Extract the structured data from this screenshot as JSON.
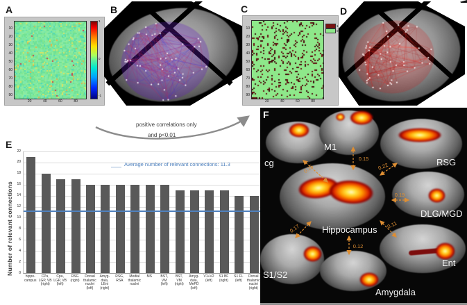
{
  "figure": {
    "panel_a": {
      "label": "A",
      "type": "correlation-matrix-heatmap",
      "y_ticks": [
        "10",
        "20",
        "30",
        "40",
        "50",
        "60",
        "70",
        "80",
        "90"
      ],
      "x_ticks": [
        "20",
        "40",
        "60",
        "80"
      ],
      "colorbar_ticks": [
        "1",
        "0",
        "-1"
      ],
      "colors": {
        "frame_bg": "#c7c7c7",
        "matrix_base": "#7ee49a"
      }
    },
    "panel_b": {
      "label": "B",
      "type": "brain-network-overlay",
      "network_colors": [
        "#5a1fd0",
        "#c01868",
        "#3030d8",
        "#cc2840"
      ],
      "haze": "rgba(100,30,190,0.30)",
      "node_color": "#ffffff"
    },
    "panel_c": {
      "label": "C",
      "type": "thresholded-matrix",
      "y_ticks": [
        "10",
        "20",
        "30",
        "40",
        "50",
        "60",
        "70",
        "80",
        "90"
      ],
      "x_ticks": [
        "20",
        "40",
        "60",
        "80"
      ],
      "legend": [
        {
          "label": "1",
          "color": "#7a1212"
        },
        {
          "label": "0",
          "color": "#8ee88a"
        }
      ],
      "colors": {
        "frame_bg": "#c7c7c7",
        "matrix_base": "#8ee88a",
        "dot": "#5c1010"
      }
    },
    "panel_d": {
      "label": "D",
      "type": "brain-network-overlay",
      "network_colors": [
        "#e41f1f",
        "#b31111",
        "#ff4433",
        "#8f0a0a"
      ],
      "haze": "rgba(215,25,25,0.22)",
      "node_color": "#ffffff"
    },
    "transition": {
      "line1": "positive correlations only",
      "line2": "and p<0.01"
    },
    "panel_e": {
      "label": "E"
    },
    "panel_f": {
      "label": "F",
      "accent_color": "#dd8e33",
      "slices": [
        {
          "label": "cg"
        },
        {
          "label": "M1"
        },
        {
          "label": "RSG"
        },
        {
          "label": "Hippocampus"
        },
        {
          "label": "DLG/MGD"
        },
        {
          "label": "S1/S2"
        },
        {
          "label": "Amygdala"
        },
        {
          "label": "Ent"
        }
      ],
      "correlations": [
        {
          "from": "cg",
          "to": "Hippocampus",
          "value": "0.15"
        },
        {
          "from": "M1",
          "to": "Hippocampus",
          "value": "0.15"
        },
        {
          "from": "RSG",
          "to": "Hippocampus",
          "value": "0.22"
        },
        {
          "from": "DLG/MGD",
          "to": "Hippocampus",
          "value": "0.19"
        },
        {
          "from": "S1/S2",
          "to": "Hippocampus",
          "value": "0.17"
        },
        {
          "from": "Amygdala",
          "to": "Hippocampus",
          "value": "0.12"
        },
        {
          "from": "Ent",
          "to": "Hippocampus",
          "value": "0.11"
        }
      ]
    }
  },
  "chart_data": {
    "type": "bar",
    "title": "",
    "ylabel": "Number of relevant connections",
    "xlabel": "",
    "ylim": [
      0,
      22
    ],
    "ytick_step": 2,
    "grid": true,
    "bar_color": "#595959",
    "categories": [
      "hippo-\ncampus",
      "CPu,\nLGP, VB\n(right)",
      "Cpu,\nLGP, VB\n(left)",
      "RSG\n(right)",
      "Dorsal\nthalamic\nnuclei\n(left)",
      "Amyg-\ndala,\nLEnt\n(right)",
      "RSG,\nRSA",
      "Medial\nthalamic\nnuclei",
      "MS",
      "BST,\nVM\n(left)",
      "BST,\nVM\n(right)",
      "Amyg-\ndala,\nMePD\n(left)",
      "V1+V2\n(left)",
      "S1 BF\n(right)",
      "S1 FL\n(left)",
      "Dorsal\nthalamic\nnuclei\n(right)"
    ],
    "values": [
      21,
      18,
      17,
      17,
      16,
      16,
      16,
      16,
      16,
      16,
      15,
      15,
      15,
      15,
      14,
      14
    ],
    "average_line": {
      "value": 11.3,
      "label": "Average number of relevant connections: 11.3",
      "color": "#4f81bd"
    }
  }
}
